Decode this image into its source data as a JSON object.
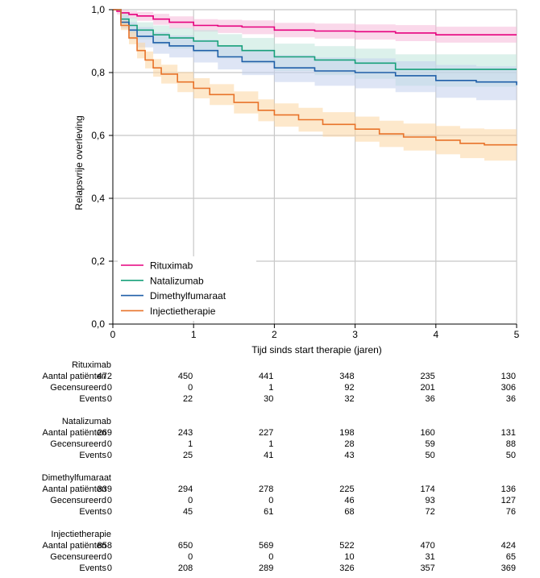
{
  "chart_data": {
    "type": "line",
    "subtype": "kaplan-meier",
    "title": "",
    "xlabel": "Tijd sinds start therapie (jaren)",
    "ylabel": "Relapsvrije overleving",
    "xlim": [
      0,
      5
    ],
    "ylim": [
      0,
      1
    ],
    "x_ticks": [
      0,
      1,
      2,
      3,
      4,
      5
    ],
    "x_tick_labels": [
      "0",
      "1",
      "2",
      "3",
      "4",
      "5"
    ],
    "y_ticks": [
      0,
      0.2,
      0.4,
      0.6,
      0.8,
      1.0
    ],
    "y_tick_labels": [
      "0,0",
      "0,2",
      "0,4",
      "0,6",
      "0,8",
      "1,0"
    ],
    "grid": "vertical and horizontal at tick marks",
    "legend_position": "bottom-left",
    "series": [
      {
        "name": "Rituximab",
        "color": "#e6007e",
        "band_color": "#f5b8d8",
        "x": [
          0,
          0.05,
          0.1,
          0.2,
          0.3,
          0.5,
          0.7,
          1.0,
          1.3,
          1.6,
          2.0,
          2.5,
          3.0,
          3.5,
          4.0,
          4.5,
          5.0
        ],
        "y": [
          1.0,
          0.995,
          0.99,
          0.985,
          0.98,
          0.97,
          0.96,
          0.95,
          0.948,
          0.945,
          0.935,
          0.932,
          0.93,
          0.926,
          0.92,
          0.92,
          0.92
        ],
        "ci_lower": [
          1.0,
          0.985,
          0.978,
          0.972,
          0.965,
          0.952,
          0.94,
          0.93,
          0.926,
          0.922,
          0.912,
          0.908,
          0.905,
          0.9,
          0.895,
          0.895,
          0.895
        ],
        "ci_upper": [
          1.0,
          1.0,
          1.0,
          0.996,
          0.993,
          0.987,
          0.979,
          0.97,
          0.968,
          0.966,
          0.958,
          0.956,
          0.953,
          0.951,
          0.946,
          0.946,
          0.946
        ]
      },
      {
        "name": "Natalizumab",
        "color": "#17a07a",
        "band_color": "#bfe6da",
        "x": [
          0,
          0.1,
          0.2,
          0.3,
          0.5,
          0.7,
          1.0,
          1.3,
          1.6,
          2.0,
          2.5,
          3.0,
          3.5,
          4.0,
          4.5,
          5.0
        ],
        "y": [
          1.0,
          0.97,
          0.95,
          0.935,
          0.92,
          0.91,
          0.9,
          0.885,
          0.87,
          0.85,
          0.84,
          0.83,
          0.81,
          0.81,
          0.81,
          0.81
        ],
        "ci_lower": [
          1.0,
          0.95,
          0.925,
          0.905,
          0.888,
          0.876,
          0.863,
          0.845,
          0.828,
          0.805,
          0.792,
          0.78,
          0.758,
          0.755,
          0.755,
          0.755
        ],
        "ci_upper": [
          1.0,
          0.99,
          0.975,
          0.96,
          0.95,
          0.942,
          0.935,
          0.922,
          0.91,
          0.892,
          0.884,
          0.876,
          0.858,
          0.858,
          0.858,
          0.858
        ]
      },
      {
        "name": "Dimethylfumaraat",
        "color": "#1f5fa8",
        "band_color": "#c3cfec",
        "x": [
          0,
          0.1,
          0.2,
          0.3,
          0.5,
          0.7,
          1.0,
          1.3,
          1.6,
          2.0,
          2.5,
          3.0,
          3.5,
          4.0,
          4.5,
          5.0
        ],
        "y": [
          1.0,
          0.96,
          0.935,
          0.915,
          0.895,
          0.885,
          0.87,
          0.85,
          0.835,
          0.815,
          0.805,
          0.8,
          0.79,
          0.775,
          0.77,
          0.76
        ],
        "ci_lower": [
          1.0,
          0.94,
          0.905,
          0.88,
          0.86,
          0.848,
          0.832,
          0.81,
          0.792,
          0.77,
          0.758,
          0.75,
          0.738,
          0.72,
          0.712,
          0.7
        ],
        "ci_upper": [
          1.0,
          0.98,
          0.96,
          0.945,
          0.928,
          0.918,
          0.905,
          0.887,
          0.873,
          0.856,
          0.848,
          0.845,
          0.836,
          0.824,
          0.82,
          0.812
        ]
      },
      {
        "name": "Injectietherapie",
        "color": "#e8732a",
        "band_color": "#fbd5a0",
        "x": [
          0,
          0.1,
          0.2,
          0.3,
          0.4,
          0.5,
          0.6,
          0.8,
          1.0,
          1.2,
          1.5,
          1.8,
          2.0,
          2.3,
          2.6,
          3.0,
          3.3,
          3.6,
          4.0,
          4.3,
          4.6,
          5.0
        ],
        "y": [
          1.0,
          0.95,
          0.91,
          0.87,
          0.84,
          0.815,
          0.795,
          0.77,
          0.75,
          0.73,
          0.705,
          0.68,
          0.665,
          0.65,
          0.635,
          0.62,
          0.605,
          0.595,
          0.585,
          0.575,
          0.57,
          0.568
        ],
        "ci_lower": [
          1.0,
          0.935,
          0.89,
          0.845,
          0.813,
          0.787,
          0.765,
          0.738,
          0.718,
          0.697,
          0.67,
          0.645,
          0.628,
          0.612,
          0.596,
          0.58,
          0.563,
          0.552,
          0.54,
          0.528,
          0.52,
          0.515
        ],
        "ci_upper": [
          1.0,
          0.965,
          0.93,
          0.895,
          0.867,
          0.843,
          0.825,
          0.802,
          0.782,
          0.763,
          0.74,
          0.715,
          0.702,
          0.688,
          0.674,
          0.66,
          0.647,
          0.638,
          0.63,
          0.622,
          0.62,
          0.618
        ]
      }
    ],
    "risk_table": {
      "time_points": [
        0,
        1,
        2,
        3,
        4,
        5
      ],
      "row_labels": [
        "Aantal patiënten",
        "Gecensureerd",
        "Events"
      ],
      "groups": [
        {
          "name": "Rituximab",
          "rows": [
            [
              "472",
              "450",
              "441",
              "348",
              "235",
              "130"
            ],
            [
              "0",
              "0",
              "1",
              "92",
              "201",
              "306"
            ],
            [
              "0",
              "22",
              "30",
              "32",
              "36",
              "36"
            ]
          ]
        },
        {
          "name": "Natalizumab",
          "rows": [
            [
              "269",
              "243",
              "227",
              "198",
              "160",
              "131"
            ],
            [
              "0",
              "1",
              "1",
              "28",
              "59",
              "88"
            ],
            [
              "0",
              "25",
              "41",
              "43",
              "50",
              "50"
            ]
          ]
        },
        {
          "name": "Dimethylfumaraat",
          "rows": [
            [
              "339",
              "294",
              "278",
              "225",
              "174",
              "136"
            ],
            [
              "0",
              "0",
              "0",
              "46",
              "93",
              "127"
            ],
            [
              "0",
              "45",
              "61",
              "68",
              "72",
              "76"
            ]
          ]
        },
        {
          "name": "Injectietherapie",
          "rows": [
            [
              "858",
              "650",
              "569",
              "522",
              "470",
              "424"
            ],
            [
              "0",
              "0",
              "0",
              "10",
              "31",
              "65"
            ],
            [
              "0",
              "208",
              "289",
              "326",
              "357",
              "369"
            ]
          ]
        }
      ]
    }
  }
}
